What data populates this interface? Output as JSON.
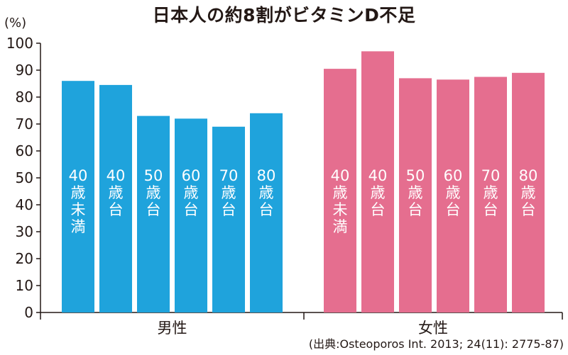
{
  "chart_data": {
    "type": "bar",
    "title": "日本人の約8割がビタミンD不足",
    "ylabel": "(%)",
    "ylim": [
      0,
      100
    ],
    "yticks": [
      0,
      10,
      20,
      30,
      40,
      50,
      60,
      70,
      80,
      90,
      100
    ],
    "grid": false,
    "groups": [
      {
        "name": "男性",
        "color": "#1fa3dc",
        "categories": [
          [
            "40",
            "歳",
            "未",
            "満"
          ],
          [
            "40",
            "歳",
            "台"
          ],
          [
            "50",
            "歳",
            "台"
          ],
          [
            "60",
            "歳",
            "台"
          ],
          [
            "70",
            "歳",
            "台"
          ],
          [
            "80",
            "歳",
            "台"
          ]
        ],
        "values": [
          86,
          84.5,
          73,
          72,
          69,
          74
        ]
      },
      {
        "name": "女性",
        "color": "#e56e8f",
        "categories": [
          [
            "40",
            "歳",
            "未",
            "満"
          ],
          [
            "40",
            "歳",
            "台"
          ],
          [
            "50",
            "歳",
            "台"
          ],
          [
            "60",
            "歳",
            "台"
          ],
          [
            "70",
            "歳",
            "台"
          ],
          [
            "80",
            "歳",
            "台"
          ]
        ],
        "values": [
          90.5,
          97,
          87,
          86.5,
          87.5,
          89
        ]
      }
    ],
    "source": "(出典:Osteoporos Int. 2013; 24(11): 2775-87)"
  }
}
